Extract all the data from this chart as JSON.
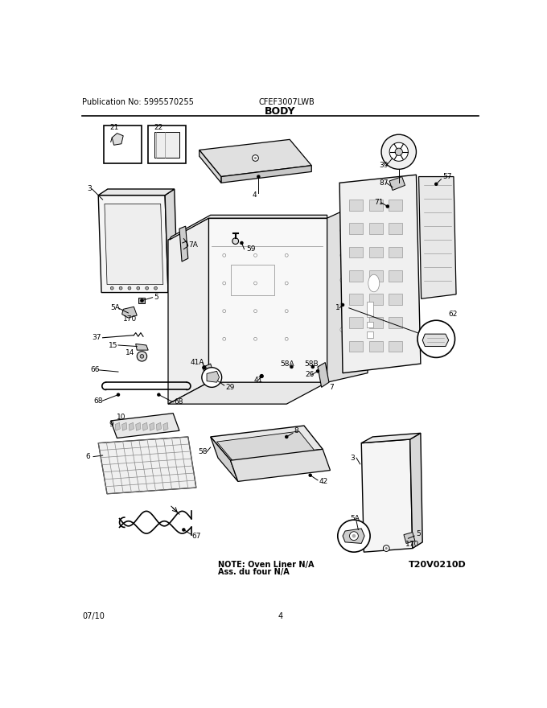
{
  "pub_no": "Publication No: 5995570255",
  "model": "CFEF3007LWB",
  "section": "BODY",
  "date": "07/10",
  "page": "4",
  "note_line1": "NOTE: Oven Liner N/A",
  "note_line2": "Ass. du four N/A",
  "diagram_id": "T20V0210D",
  "bg_color": "#ffffff",
  "lc": "#000000",
  "gray1": "#888888",
  "gray2": "#cccccc",
  "gray3": "#e8e8e8",
  "figsize": [
    6.8,
    8.8
  ],
  "dpi": 100
}
